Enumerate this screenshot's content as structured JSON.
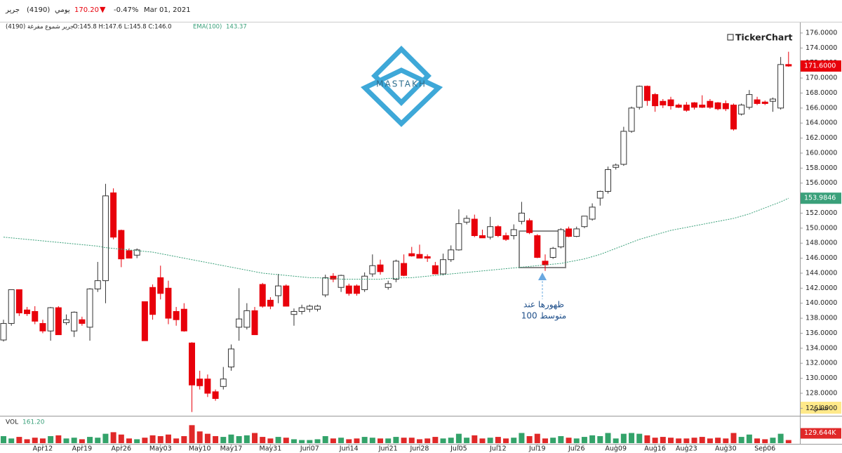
{
  "chart_data": {
    "type": "candlestick",
    "header": {
      "name": "جرير",
      "code": "(4190)",
      "period": "يومي",
      "price": "170.20",
      "arrow": "▼",
      "change": "-0.47%",
      "date": "Mar 01, 2021"
    },
    "legend_line": {
      "desc": "جرير شموع مفرغة (4190)",
      "ohlc": "O:145.8  H:147.6  L:145.8  C:146.0",
      "ema_name": "EMA(100)",
      "ema_value": "143.37"
    },
    "brand": "TickerChart",
    "logo": "MASTAKH",
    "annotation": [
      "ظهورها عند",
      "متوسط 100"
    ],
    "scale_mode": "خطي",
    "volume_title": "VOL",
    "volume_value": "161.20",
    "up_color": "#ffffff",
    "down_color": "#e8000b",
    "ema_color": "#3aa07a",
    "vol_up_color": "#33a36a",
    "vol_down_color": "#e02828",
    "ylim": [
      125,
      177.4
    ],
    "yticks": [
      {
        "value": 126,
        "label": "126.0000"
      },
      {
        "value": 128,
        "label": "128.0000"
      },
      {
        "value": 130,
        "label": "130.0000"
      },
      {
        "value": 132,
        "label": "132.0000"
      },
      {
        "value": 134,
        "label": "134.0000"
      },
      {
        "value": 136,
        "label": "136.0000"
      },
      {
        "value": 138,
        "label": "138.0000"
      },
      {
        "value": 140,
        "label": "140.0000"
      },
      {
        "value": 142,
        "label": "142.0000"
      },
      {
        "value": 144,
        "label": "144.0000"
      },
      {
        "value": 146,
        "label": "146.0000"
      },
      {
        "value": 148,
        "label": "148.0000"
      },
      {
        "value": 150,
        "label": "150.0000"
      },
      {
        "value": 152,
        "label": "152.0000"
      },
      {
        "value": 154,
        "label": "154.0000"
      },
      {
        "value": 156,
        "label": "156.0000"
      },
      {
        "value": 158,
        "label": "158.0000"
      },
      {
        "value": 160,
        "label": "160.0000"
      },
      {
        "value": 162,
        "label": "162.0000"
      },
      {
        "value": 164,
        "label": "164.0000"
      },
      {
        "value": 166,
        "label": "166.0000"
      },
      {
        "value": 168,
        "label": "168.0000"
      },
      {
        "value": 170,
        "label": "170.0000"
      },
      {
        "value": 172,
        "label": "172.0000"
      },
      {
        "value": 174,
        "label": "174.0000"
      },
      {
        "value": 176,
        "label": "176.0000"
      }
    ],
    "price_markers": [
      {
        "value": 171.6,
        "label": "171.6000",
        "color": "#e8000b"
      },
      {
        "value": 153.9846,
        "label": "153.9846",
        "color": "#3aa07a"
      }
    ],
    "categories": [
      null,
      null,
      null,
      null,
      null,
      "Apr12",
      null,
      null,
      null,
      null,
      "Apr19",
      null,
      null,
      null,
      null,
      "Apr26",
      null,
      null,
      null,
      null,
      "May03",
      null,
      null,
      null,
      null,
      "May10",
      null,
      null,
      null,
      "May17",
      null,
      null,
      null,
      null,
      "May31",
      null,
      null,
      null,
      null,
      "Jun07",
      null,
      null,
      null,
      null,
      "Jun14",
      null,
      null,
      null,
      null,
      "Jun21",
      null,
      null,
      null,
      "Jun28",
      null,
      null,
      null,
      null,
      "Jul05",
      null,
      null,
      null,
      null,
      "Jul12",
      null,
      null,
      null,
      null,
      "Jul19",
      null,
      null,
      null,
      null,
      "Jul26",
      null,
      null,
      null,
      null,
      "Aug09",
      null,
      null,
      null,
      null,
      "Aug16",
      null,
      null,
      null,
      "Aug23",
      null,
      null,
      null,
      null,
      "Aug30",
      null,
      null,
      null,
      null,
      "Sep06",
      null,
      null,
      null
    ],
    "candles": [
      [
        135.1,
        137.8,
        134.9,
        137.3
      ],
      [
        137.3,
        141.8,
        137.0,
        141.8
      ],
      [
        141.8,
        141.8,
        138.3,
        138.7
      ],
      [
        139.1,
        139.5,
        138.3,
        138.6
      ],
      [
        138.9,
        139.6,
        137.2,
        137.6
      ],
      [
        137.3,
        137.8,
        136.0,
        136.3
      ],
      [
        136.3,
        139.5,
        135.0,
        139.4
      ],
      [
        139.4,
        139.6,
        135.8,
        135.8
      ],
      [
        137.4,
        138.5,
        137.1,
        137.8
      ],
      [
        136.3,
        138.9,
        135.5,
        138.8
      ],
      [
        137.8,
        138.2,
        137.0,
        137.3
      ],
      [
        136.8,
        142.0,
        135.0,
        141.9
      ],
      [
        141.9,
        145.5,
        141.5,
        143.0
      ],
      [
        143.0,
        155.9,
        140.0,
        154.3
      ],
      [
        154.7,
        155.3,
        148.5,
        148.8
      ],
      [
        149.7,
        149.8,
        144.8,
        145.9
      ],
      [
        147.0,
        147.3,
        146.0,
        146.0
      ],
      [
        146.4,
        147.3,
        146.0,
        147.1
      ],
      [
        140.2,
        140.2,
        135.0,
        135.0
      ],
      [
        142.1,
        142.5,
        137.8,
        138.5
      ],
      [
        143.4,
        145.0,
        140.5,
        141.3
      ],
      [
        142.0,
        143.0,
        137.2,
        138.0
      ],
      [
        138.9,
        139.5,
        137.0,
        137.8
      ],
      [
        139.2,
        140.0,
        136.2,
        136.3
      ],
      [
        134.7,
        134.8,
        125.5,
        129.1
      ],
      [
        129.9,
        131.0,
        128.5,
        129.0
      ],
      [
        129.9,
        130.5,
        127.5,
        128.0
      ],
      [
        128.2,
        128.5,
        127.0,
        127.3
      ],
      [
        128.9,
        131.5,
        128.5,
        129.9
      ],
      [
        131.5,
        134.5,
        131.0,
        133.9
      ],
      [
        136.8,
        142.0,
        135.0,
        137.9
      ],
      [
        136.8,
        140.0,
        136.5,
        139.0
      ],
      [
        139.0,
        139.5,
        135.8,
        135.8
      ],
      [
        142.5,
        142.7,
        139.4,
        139.6
      ],
      [
        140.4,
        140.8,
        139.2,
        139.6
      ],
      [
        141.0,
        143.9,
        140.0,
        142.3
      ],
      [
        142.3,
        142.5,
        139.6,
        139.6
      ],
      [
        138.5,
        139.3,
        137.0,
        138.9
      ],
      [
        138.9,
        139.8,
        138.5,
        139.4
      ],
      [
        139.2,
        139.8,
        138.8,
        139.6
      ],
      [
        139.2,
        139.8,
        138.9,
        139.6
      ],
      [
        141.1,
        143.8,
        140.8,
        143.4
      ],
      [
        143.6,
        144.0,
        142.8,
        143.2
      ],
      [
        142.1,
        143.8,
        141.5,
        143.7
      ],
      [
        142.3,
        142.6,
        141.0,
        141.3
      ],
      [
        142.3,
        142.5,
        141.0,
        141.3
      ],
      [
        141.8,
        144.1,
        141.5,
        143.6
      ],
      [
        143.9,
        146.5,
        143.5,
        145.0
      ],
      [
        145.1,
        145.8,
        143.8,
        144.2
      ],
      [
        142.1,
        143.0,
        141.8,
        142.6
      ],
      [
        143.2,
        145.8,
        142.8,
        145.6
      ],
      [
        145.3,
        146.5,
        143.6,
        143.7
      ],
      [
        146.6,
        147.5,
        146.2,
        146.3
      ],
      [
        146.5,
        147.8,
        146.0,
        146.0
      ],
      [
        146.2,
        146.5,
        145.5,
        146.0
      ],
      [
        145.0,
        145.5,
        143.9,
        143.9
      ],
      [
        143.9,
        146.6,
        143.7,
        145.8
      ],
      [
        145.8,
        147.7,
        145.5,
        147.1
      ],
      [
        147.1,
        152.5,
        147.0,
        150.6
      ],
      [
        150.8,
        151.7,
        150.5,
        151.3
      ],
      [
        151.2,
        151.8,
        148.8,
        149.0
      ],
      [
        149.0,
        149.8,
        148.7,
        148.7
      ],
      [
        148.8,
        151.5,
        148.5,
        150.2
      ],
      [
        150.2,
        150.4,
        148.8,
        149.0
      ],
      [
        149.0,
        149.4,
        148.3,
        148.5
      ],
      [
        149.0,
        150.5,
        148.5,
        149.8
      ],
      [
        150.9,
        153.5,
        150.5,
        152.0
      ],
      [
        151.0,
        151.3,
        149.2,
        149.4
      ],
      [
        149.0,
        149.2,
        146.0,
        146.1
      ],
      [
        145.6,
        146.5,
        144.3,
        145.1
      ],
      [
        146.1,
        147.5,
        145.9,
        147.3
      ],
      [
        147.5,
        150.0,
        147.3,
        149.8
      ],
      [
        149.9,
        150.2,
        148.8,
        148.9
      ],
      [
        148.9,
        150.2,
        148.8,
        149.9
      ],
      [
        150.2,
        151.6,
        150.0,
        151.6
      ],
      [
        151.2,
        153.3,
        151.0,
        152.8
      ],
      [
        154.0,
        155.0,
        153.0,
        154.9
      ],
      [
        154.9,
        158.2,
        154.6,
        157.8
      ],
      [
        158.1,
        158.6,
        157.8,
        158.4
      ],
      [
        158.5,
        163.5,
        158.3,
        162.9
      ],
      [
        162.9,
        166.2,
        162.7,
        166.0
      ],
      [
        166.1,
        169.0,
        165.8,
        168.9
      ],
      [
        168.9,
        169.0,
        166.3,
        167.0
      ],
      [
        167.8,
        168.0,
        165.5,
        166.3
      ],
      [
        166.9,
        167.2,
        166.0,
        166.4
      ],
      [
        167.1,
        167.5,
        165.8,
        166.3
      ],
      [
        166.4,
        166.6,
        166.0,
        166.1
      ],
      [
        166.4,
        166.8,
        165.5,
        165.7
      ],
      [
        166.7,
        166.8,
        165.8,
        166.1
      ],
      [
        166.4,
        167.7,
        166.0,
        166.1
      ],
      [
        166.9,
        167.2,
        165.9,
        166.1
      ],
      [
        166.7,
        166.8,
        165.7,
        165.9
      ],
      [
        166.6,
        167.0,
        165.6,
        165.9
      ],
      [
        166.4,
        166.6,
        163.0,
        163.2
      ],
      [
        165.2,
        166.6,
        165.0,
        166.4
      ],
      [
        166.1,
        168.4,
        165.8,
        167.8
      ],
      [
        167.1,
        167.5,
        166.4,
        166.6
      ],
      [
        166.8,
        167.0,
        166.4,
        166.6
      ],
      [
        166.9,
        167.4,
        165.5,
        167.2
      ],
      [
        166.0,
        172.8,
        165.8,
        171.8
      ],
      [
        171.8,
        173.5,
        171.5,
        171.6
      ]
    ],
    "ema": [
      148.8,
      148.7,
      148.6,
      148.5,
      148.4,
      148.3,
      148.2,
      148.1,
      148.0,
      147.9,
      147.8,
      147.7,
      147.6,
      147.4,
      147.3,
      147.2,
      147.1,
      147.0,
      146.9,
      146.8,
      146.6,
      146.4,
      146.2,
      146.0,
      145.8,
      145.6,
      145.4,
      145.2,
      145.0,
      144.8,
      144.6,
      144.4,
      144.2,
      144.0,
      143.9,
      143.8,
      143.7,
      143.6,
      143.5,
      143.4,
      143.4,
      143.3,
      143.3,
      143.2,
      143.2,
      143.2,
      143.2,
      143.2,
      143.2,
      143.3,
      143.3,
      143.4,
      143.4,
      143.5,
      143.6,
      143.7,
      143.8,
      143.9,
      144.0,
      144.1,
      144.2,
      144.3,
      144.4,
      144.5,
      144.6,
      144.7,
      144.8,
      144.9,
      145.0,
      145.1,
      145.2,
      145.3,
      145.5,
      145.7,
      145.9,
      146.2,
      146.5,
      146.9,
      147.3,
      147.7,
      148.1,
      148.5,
      148.8,
      149.1,
      149.4,
      149.7,
      149.9,
      150.1,
      150.3,
      150.5,
      150.7,
      150.9,
      151.1,
      151.3,
      151.6,
      151.9,
      152.3,
      152.7,
      153.1,
      153.5,
      153.9846
    ],
    "volume": [
      90,
      60,
      80,
      50,
      70,
      60,
      90,
      100,
      60,
      70,
      50,
      80,
      70,
      120,
      140,
      110,
      60,
      50,
      70,
      100,
      90,
      110,
      60,
      90,
      230,
      150,
      120,
      90,
      80,
      110,
      90,
      100,
      130,
      80,
      60,
      80,
      70,
      50,
      40,
      40,
      50,
      90,
      60,
      70,
      50,
      60,
      80,
      70,
      60,
      60,
      80,
      70,
      70,
      50,
      60,
      80,
      60,
      70,
      120,
      70,
      100,
      60,
      70,
      80,
      60,
      70,
      130,
      90,
      120,
      60,
      70,
      90,
      70,
      60,
      80,
      100,
      90,
      130,
      60,
      120,
      130,
      120,
      100,
      70,
      80,
      70,
      60,
      60,
      70,
      80,
      60,
      70,
      60,
      130,
      80,
      110,
      60,
      50,
      70,
      120,
      40
    ],
    "vlim": [
      0,
      260
    ],
    "volume_marker": {
      "value": 129.644,
      "label": "129.644K"
    }
  }
}
